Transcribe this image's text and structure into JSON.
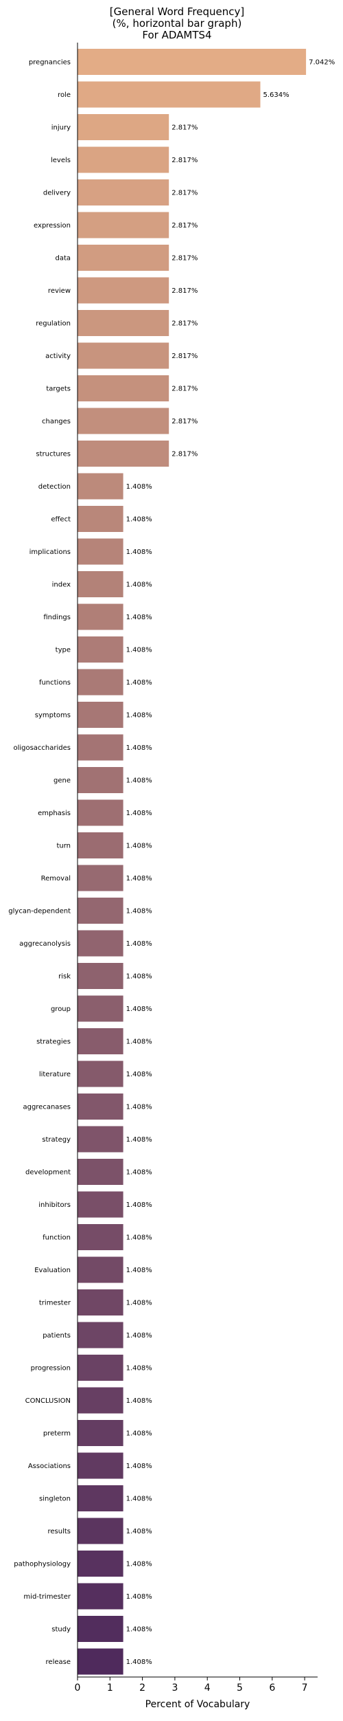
{
  "chart_data": {
    "type": "bar",
    "orientation": "horizontal",
    "title_lines": [
      "[General Word Frequency]",
      "(%, horizontal bar graph)",
      "For ADAMTS4"
    ],
    "xlabel": "Percent of Vocabulary",
    "ylabel": "",
    "xlim": [
      0,
      7.4
    ],
    "xticks": [
      0,
      1,
      2,
      3,
      4,
      5,
      6,
      7
    ],
    "grid": false,
    "legend": false,
    "color_start": "#e3ac86",
    "color_end": "#4f2a5c",
    "categories": [
      "pregnancies",
      "role",
      "injury",
      "levels",
      "delivery",
      "expression",
      "data",
      "review",
      "regulation",
      "activity",
      "targets",
      "changes",
      "structures",
      "detection",
      "effect",
      "implications",
      "index",
      "findings",
      "type",
      "functions",
      "symptoms",
      "oligosaccharides",
      "gene",
      "emphasis",
      "turn",
      "Removal",
      "glycan-dependent",
      "aggrecanolysis",
      "risk",
      "group",
      "strategies",
      "literature",
      "aggrecanases",
      "strategy",
      "development",
      "inhibitors",
      "function",
      "Evaluation",
      "trimester",
      "patients",
      "progression",
      "CONCLUSION",
      "preterm",
      "Associations",
      "singleton",
      "results",
      "pathophysiology",
      "mid-trimester",
      "study",
      "release"
    ],
    "values": [
      7.042,
      5.634,
      2.817,
      2.817,
      2.817,
      2.817,
      2.817,
      2.817,
      2.817,
      2.817,
      2.817,
      2.817,
      2.817,
      1.408,
      1.408,
      1.408,
      1.408,
      1.408,
      1.408,
      1.408,
      1.408,
      1.408,
      1.408,
      1.408,
      1.408,
      1.408,
      1.408,
      1.408,
      1.408,
      1.408,
      1.408,
      1.408,
      1.408,
      1.408,
      1.408,
      1.408,
      1.408,
      1.408,
      1.408,
      1.408,
      1.408,
      1.408,
      1.408,
      1.408,
      1.408,
      1.408,
      1.408,
      1.408,
      1.408,
      1.408
    ],
    "value_labels": [
      "7.042%",
      "5.634%",
      "2.817%",
      "2.817%",
      "2.817%",
      "2.817%",
      "2.817%",
      "2.817%",
      "2.817%",
      "2.817%",
      "2.817%",
      "2.817%",
      "2.817%",
      "1.408%",
      "1.408%",
      "1.408%",
      "1.408%",
      "1.408%",
      "1.408%",
      "1.408%",
      "1.408%",
      "1.408%",
      "1.408%",
      "1.408%",
      "1.408%",
      "1.408%",
      "1.408%",
      "1.408%",
      "1.408%",
      "1.408%",
      "1.408%",
      "1.408%",
      "1.408%",
      "1.408%",
      "1.408%",
      "1.408%",
      "1.408%",
      "1.408%",
      "1.408%",
      "1.408%",
      "1.408%",
      "1.408%",
      "1.408%",
      "1.408%",
      "1.408%",
      "1.408%",
      "1.408%",
      "1.408%",
      "1.408%",
      "1.408%"
    ]
  }
}
